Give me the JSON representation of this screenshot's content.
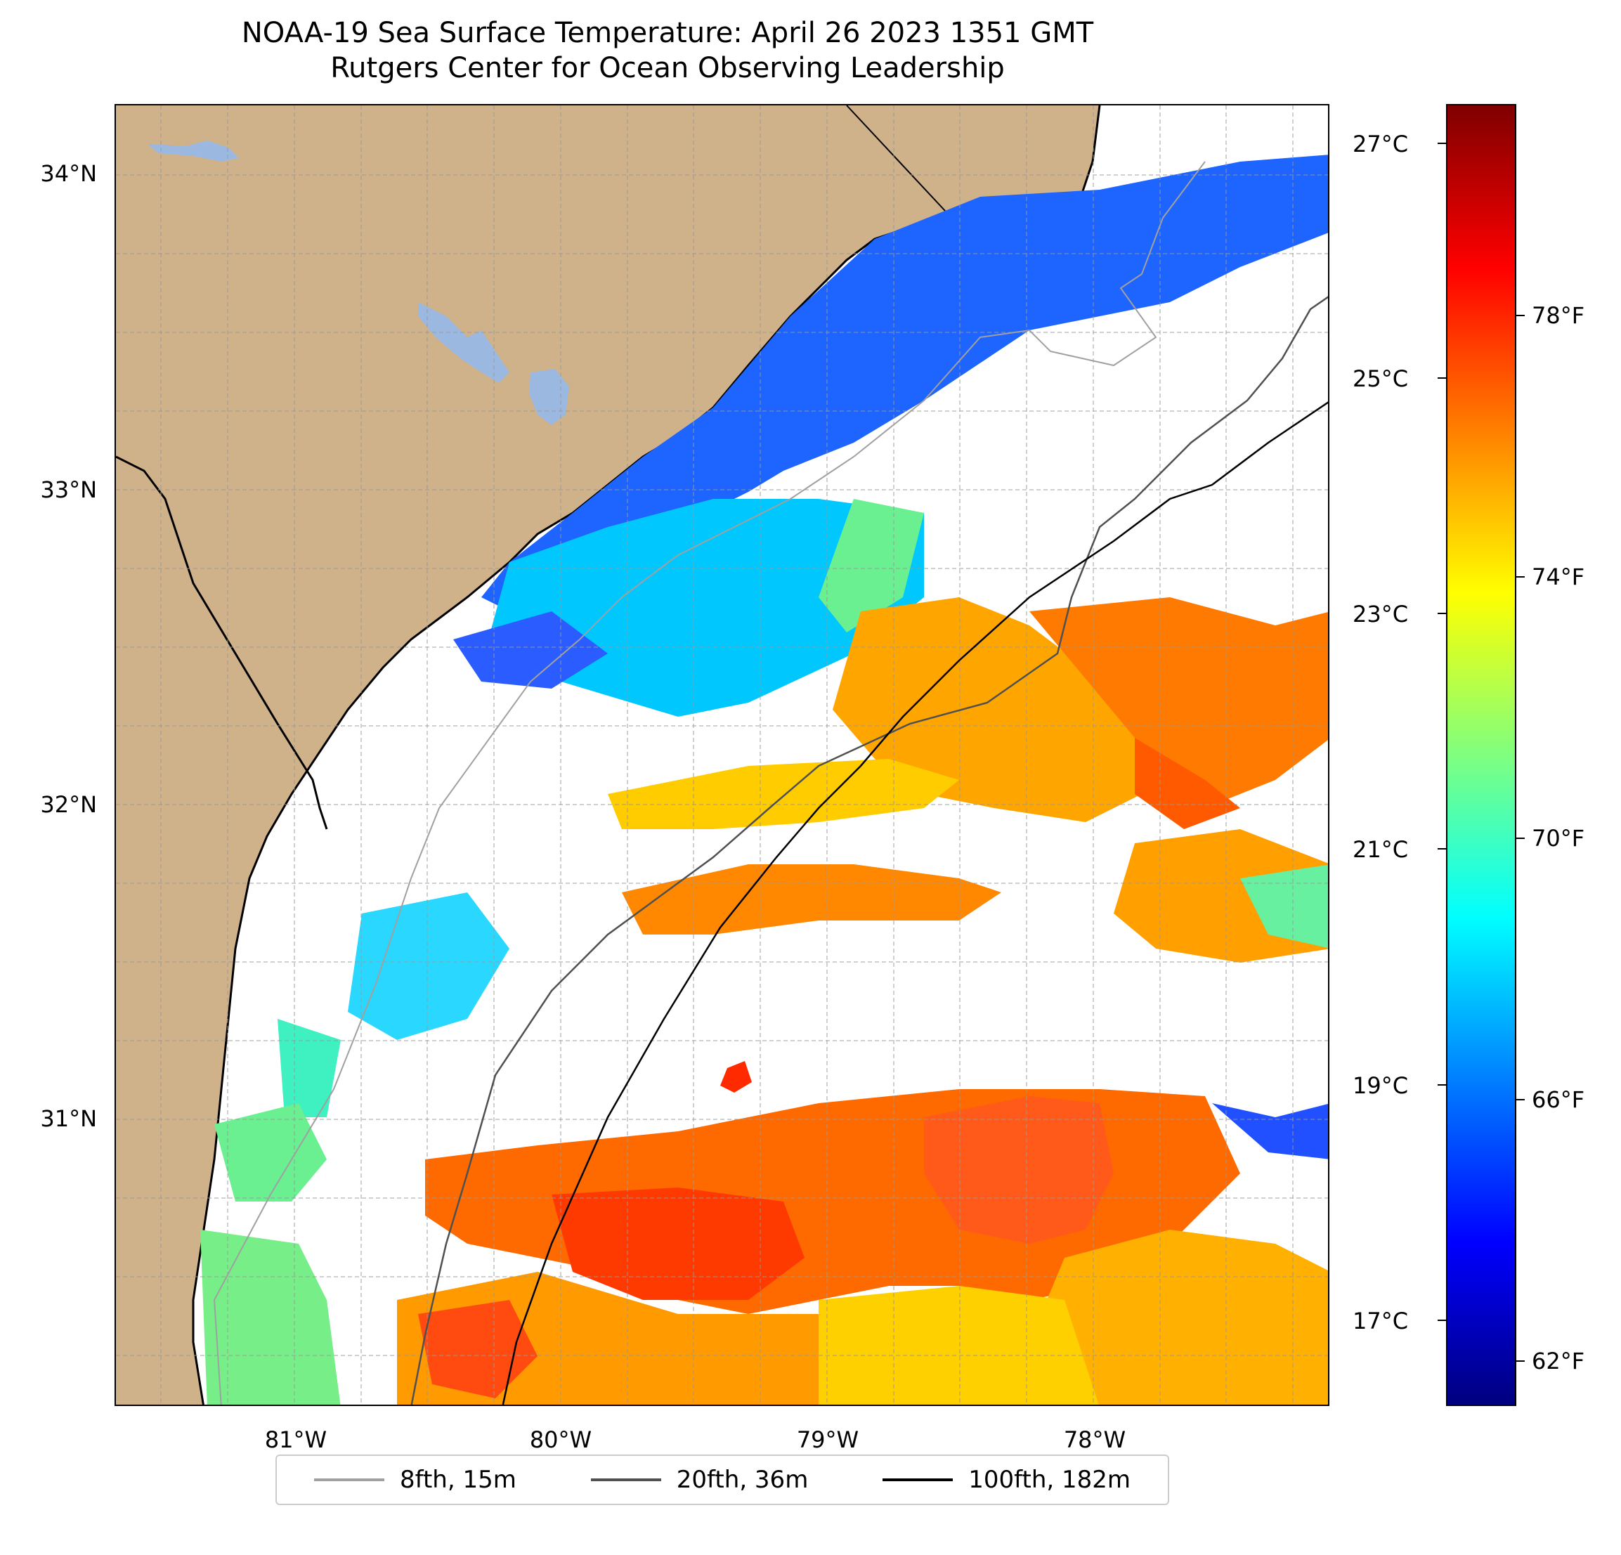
{
  "title": {
    "line1": "NOAA-19 Sea Surface Temperature: April 26 2023 1351 GMT",
    "line2": "Rutgers Center for Ocean Observing Leadership"
  },
  "axes": {
    "lat_labels": [
      "34°N",
      "33°N",
      "32°N",
      "31°N"
    ],
    "lon_labels": [
      "81°W",
      "80°W",
      "79°W",
      "78°W"
    ]
  },
  "colorbar": {
    "celsius_labels": [
      "27°C",
      "25°C",
      "23°C",
      "21°C",
      "19°C",
      "17°C"
    ],
    "fahrenheit_labels": [
      "78°F",
      "74°F",
      "70°F",
      "66°F",
      "62°F"
    ],
    "colormap": "jet"
  },
  "legend": {
    "items": [
      {
        "label": "8fth, 15m",
        "color": "#a0a0a0"
      },
      {
        "label": "20fth, 36m",
        "color": "#505050"
      },
      {
        "label": "100fth, 182m",
        "color": "#000000"
      }
    ]
  },
  "colors": {
    "land": "#cfb28a",
    "lakes": "#9ab8e0",
    "ocean_no_data": "#ffffff"
  }
}
